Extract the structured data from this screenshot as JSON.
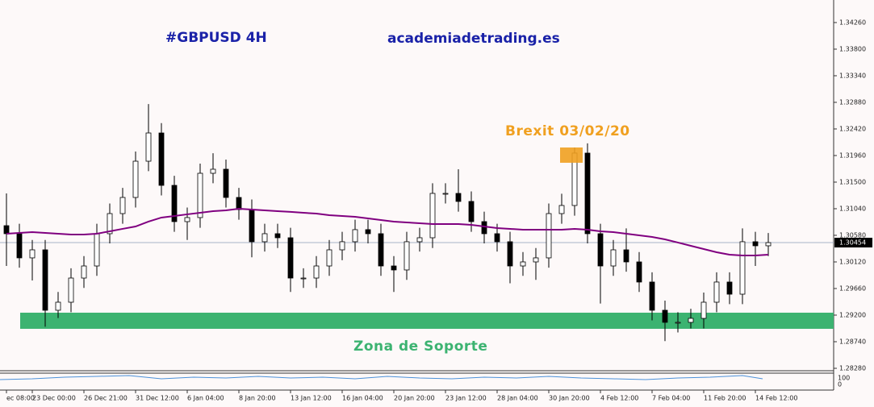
{
  "chart_data": {
    "type": "candlestick",
    "title": "#GBPUSD 4H",
    "subtitle": "academiadetrading.es",
    "annotations": [
      {
        "text": "Brexit 03/02/20",
        "color": "#f0a020",
        "range": [
          1.31835,
          1.32099
        ],
        "at": 44
      },
      {
        "text": "Zona de Soporte",
        "color": "#3cb371",
        "range": [
          1.28963,
          1.29242
        ]
      }
    ],
    "current_price": 1.30454,
    "categories": [
      "ec 08:00",
      null,
      "23 Dec 00:00",
      null,
      null,
      null,
      "26 Dec 21:00",
      null,
      null,
      null,
      "31 Dec 12:00",
      null,
      null,
      null,
      "6 Jan 04:00",
      null,
      null,
      null,
      "8 Jan 20:00",
      null,
      null,
      null,
      "13 Jan 12:00",
      null,
      null,
      null,
      "16 Jan 04:00",
      null,
      null,
      null,
      "20 Jan 20:00",
      null,
      null,
      null,
      "23 Jan 12:00",
      null,
      null,
      null,
      "28 Jan 04:00",
      null,
      null,
      null,
      "30 Jan 20:00",
      null,
      null,
      null,
      "4 Feb 12:00",
      null,
      null,
      null,
      "7 Feb 04:00",
      null,
      null,
      null,
      "11 Feb 20:00",
      null,
      null,
      null,
      "14 Feb 12:00",
      null
    ],
    "ohlc": [
      [
        1.30747,
        1.31305,
        1.3005,
        1.30608
      ],
      [
        1.30608,
        1.3078,
        1.3002,
        1.3019
      ],
      [
        1.3019,
        1.305,
        1.298,
        1.30329
      ],
      [
        1.30329,
        1.305,
        1.29,
        1.29284
      ],
      [
        1.29284,
        1.296,
        1.2915,
        1.29423
      ],
      [
        1.29423,
        1.3001,
        1.2925,
        1.29841
      ],
      [
        1.29841,
        1.3022,
        1.2967,
        1.3005
      ],
      [
        1.3005,
        1.3078,
        1.2988,
        1.30608
      ],
      [
        1.30608,
        1.3113,
        1.3044,
        1.30956
      ],
      [
        1.30956,
        1.314,
        1.3078,
        1.31235
      ],
      [
        1.31235,
        1.3203,
        1.3106,
        1.31862
      ],
      [
        1.31862,
        1.3285,
        1.3169,
        1.3235
      ],
      [
        1.3235,
        1.3252,
        1.3127,
        1.31444
      ],
      [
        1.31444,
        1.3161,
        1.3064,
        1.30817
      ],
      [
        1.30817,
        1.3106,
        1.305,
        1.30887
      ],
      [
        1.30887,
        1.3182,
        1.3071,
        1.31653
      ],
      [
        1.31653,
        1.32,
        1.3148,
        1.31723
      ],
      [
        1.31723,
        1.3189,
        1.3106,
        1.31235
      ],
      [
        1.31235,
        1.314,
        1.3085,
        1.31026
      ],
      [
        1.31026,
        1.312,
        1.302,
        1.30469
      ],
      [
        1.30469,
        1.3078,
        1.303,
        1.30608
      ],
      [
        1.30608,
        1.3078,
        1.3036,
        1.30538
      ],
      [
        1.30538,
        1.3071,
        1.296,
        1.29841
      ],
      [
        1.29841,
        1.3001,
        1.2967,
        1.29841
      ],
      [
        1.29841,
        1.3022,
        1.2967,
        1.3005
      ],
      [
        1.3005,
        1.305,
        1.2988,
        1.30329
      ],
      [
        1.30329,
        1.3064,
        1.3015,
        1.30469
      ],
      [
        1.30469,
        1.3085,
        1.303,
        1.30678
      ],
      [
        1.30678,
        1.3085,
        1.3044,
        1.30608
      ],
      [
        1.30608,
        1.3078,
        1.2988,
        1.3005
      ],
      [
        1.3005,
        1.3022,
        1.296,
        1.29981
      ],
      [
        1.29981,
        1.3064,
        1.2981,
        1.30469
      ],
      [
        1.30469,
        1.3071,
        1.303,
        1.30538
      ],
      [
        1.30538,
        1.3148,
        1.3036,
        1.31305
      ],
      [
        1.31305,
        1.3148,
        1.3113,
        1.31305
      ],
      [
        1.31305,
        1.31723,
        1.3099,
        1.31166
      ],
      [
        1.31166,
        1.3134,
        1.3064,
        1.30817
      ],
      [
        1.30817,
        1.3099,
        1.3044,
        1.30608
      ],
      [
        1.30608,
        1.3078,
        1.303,
        1.30469
      ],
      [
        1.30469,
        1.3064,
        1.2975,
        1.3005
      ],
      [
        1.3005,
        1.3029,
        1.2988,
        1.3012
      ],
      [
        1.3012,
        1.3036,
        1.2981,
        1.3019
      ],
      [
        1.3019,
        1.3113,
        1.3002,
        1.30956
      ],
      [
        1.30956,
        1.313,
        1.3078,
        1.31096
      ],
      [
        1.31096,
        1.321,
        1.3092,
        1.32002
      ],
      [
        1.32002,
        1.3217,
        1.3044,
        1.30608
      ],
      [
        1.30608,
        1.3078,
        1.294,
        1.3005
      ],
      [
        1.3005,
        1.305,
        1.2988,
        1.30329
      ],
      [
        1.30329,
        1.307,
        1.2995,
        1.3012
      ],
      [
        1.3012,
        1.3029,
        1.296,
        1.29772
      ],
      [
        1.29772,
        1.2994,
        1.2911,
        1.29284
      ],
      [
        1.29284,
        1.2945,
        1.2875,
        1.29075
      ],
      [
        1.29075,
        1.2925,
        1.289,
        1.29075
      ],
      [
        1.29075,
        1.2931,
        1.2897,
        1.29144
      ],
      [
        1.29144,
        1.2959,
        1.2897,
        1.29423
      ],
      [
        1.29423,
        1.2994,
        1.2925,
        1.29772
      ],
      [
        1.29772,
        1.2994,
        1.2939,
        1.29562
      ],
      [
        1.29562,
        1.307,
        1.2939,
        1.30469
      ],
      [
        1.30469,
        1.3064,
        1.3005,
        1.30399
      ],
      [
        1.30399,
        1.3062,
        1.3022,
        1.30454
      ]
    ],
    "series": [
      {
        "color": "#800080",
        "values": [
          1.30608,
          1.30622,
          1.30636,
          1.30622,
          1.30608,
          1.30594,
          1.30594,
          1.30608,
          1.3065,
          1.30692,
          1.30733,
          1.30817,
          1.30887,
          1.30915,
          1.30943,
          1.3097,
          1.30998,
          1.31012,
          1.3104,
          1.31026,
          1.31012,
          1.30998,
          1.30985,
          1.3097,
          1.30956,
          1.30929,
          1.30915,
          1.30901,
          1.30873,
          1.30845,
          1.30817,
          1.30803,
          1.30789,
          1.30775,
          1.30775,
          1.30775,
          1.30761,
          1.30733,
          1.30706,
          1.30692,
          1.30678,
          1.30678,
          1.30678,
          1.30678,
          1.30692,
          1.30678,
          1.3065,
          1.30636,
          1.30608,
          1.3058,
          1.30552,
          1.3051,
          1.30455,
          1.30399,
          1.30343,
          1.30287,
          1.30246,
          1.30232,
          1.30232,
          1.30246
        ]
      }
    ],
    "ylim": [
      1.28238,
      1.3465
    ],
    "yticks": [
      {
        "value": 1.3426,
        "label": "1.34260"
      },
      {
        "value": 1.338,
        "label": "1.33800"
      },
      {
        "value": 1.3334,
        "label": "1.33340"
      },
      {
        "value": 1.3288,
        "label": "1.32880"
      },
      {
        "value": 1.3242,
        "label": "1.32420"
      },
      {
        "value": 1.3196,
        "label": "1.31960"
      },
      {
        "value": 1.315,
        "label": "1.31500"
      },
      {
        "value": 1.3104,
        "label": "1.31040"
      },
      {
        "value": 1.3058,
        "label": "1.30580"
      },
      {
        "value": 1.3012,
        "label": "1.30120"
      },
      {
        "value": 1.2966,
        "label": "1.29660"
      },
      {
        "value": 1.292,
        "label": "1.29200"
      },
      {
        "value": 1.2874,
        "label": "1.28740"
      },
      {
        "value": 1.2828,
        "label": "1.28280"
      }
    ],
    "indicator_ticks": [
      100,
      0
    ]
  }
}
